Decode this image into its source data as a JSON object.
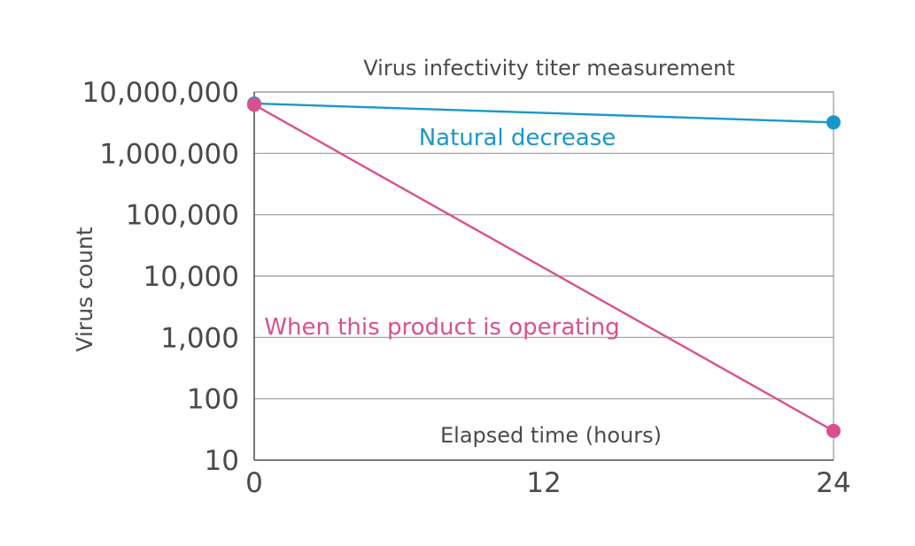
{
  "chart_data": {
    "type": "line",
    "title": "Virus infectivity titer measurement",
    "xlabel": "Elapsed time (hours)",
    "ylabel": "Virus count",
    "x_ticks": [
      "0",
      "12",
      "24"
    ],
    "y_ticks": [
      "10",
      "100",
      "1,000",
      "10,000",
      "100,000",
      "1,000,000",
      "10,000,000"
    ],
    "xlim": [
      0,
      24
    ],
    "ylim": [
      10,
      10000000
    ],
    "y_scale": "log",
    "grid": true,
    "series": [
      {
        "name": "Natural decrease",
        "color": "#1a97c9",
        "x": [
          0,
          24
        ],
        "y": [
          6500000,
          3200000
        ]
      },
      {
        "name": "When this product is operating",
        "color": "#d9508f",
        "x": [
          0,
          24
        ],
        "y": [
          6200000,
          30
        ]
      }
    ]
  }
}
